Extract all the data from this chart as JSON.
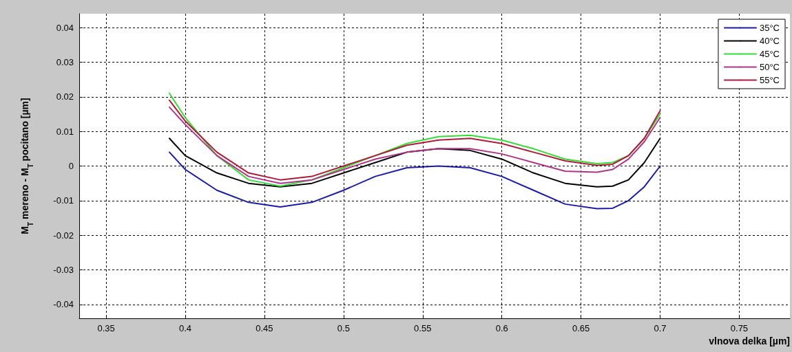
{
  "chart_data": {
    "type": "line",
    "xlabel": "vlnova delka [µm]",
    "ylabel": "M$_{T}$ mereno - M$_{T}$ pocitano [µm]",
    "x": [
      0.39,
      0.4,
      0.42,
      0.44,
      0.46,
      0.48,
      0.5,
      0.52,
      0.54,
      0.56,
      0.58,
      0.6,
      0.62,
      0.64,
      0.66,
      0.67,
      0.68,
      0.69,
      0.7
    ],
    "series": [
      {
        "name": "35°C",
        "color": "#1a1aa8",
        "values": [
          0.004,
          -0.001,
          -0.007,
          -0.0105,
          -0.0118,
          -0.0105,
          -0.007,
          -0.003,
          -0.0005,
          0.0,
          -0.0005,
          -0.003,
          -0.007,
          -0.011,
          -0.0123,
          -0.0122,
          -0.01,
          -0.006,
          0.0
        ]
      },
      {
        "name": "40°C",
        "color": "#000000",
        "values": [
          0.008,
          0.003,
          -0.002,
          -0.005,
          -0.006,
          -0.005,
          -0.002,
          0.001,
          0.004,
          0.005,
          0.0045,
          0.002,
          -0.002,
          -0.005,
          -0.006,
          -0.0058,
          -0.004,
          0.001,
          0.008
        ]
      },
      {
        "name": "45°C",
        "color": "#33dd33",
        "values": [
          0.021,
          0.014,
          0.003,
          -0.004,
          -0.0058,
          -0.004,
          -0.0005,
          0.003,
          0.0065,
          0.0085,
          0.0089,
          0.0075,
          0.005,
          0.002,
          0.0007,
          0.001,
          0.003,
          0.008,
          0.015
        ]
      },
      {
        "name": "50°C",
        "color": "#b0338a",
        "values": [
          0.017,
          0.012,
          0.003,
          -0.003,
          -0.005,
          -0.004,
          -0.001,
          0.002,
          0.004,
          0.005,
          0.005,
          0.0035,
          0.001,
          -0.0015,
          -0.0018,
          -0.001,
          0.002,
          0.007,
          0.014
        ]
      },
      {
        "name": "55°C",
        "color": "#b01a3a",
        "values": [
          0.019,
          0.013,
          0.004,
          -0.002,
          -0.004,
          -0.003,
          0.0,
          0.003,
          0.006,
          0.0075,
          0.008,
          0.0065,
          0.004,
          0.0015,
          0.0002,
          0.0005,
          0.003,
          0.008,
          0.016
        ]
      }
    ],
    "xlim": [
      0.333,
      0.782
    ],
    "xticks": [
      0.35,
      0.4,
      0.45,
      0.5,
      0.55,
      0.6,
      0.65,
      0.7,
      0.75
    ],
    "ylim": [
      -0.044,
      0.044
    ],
    "yticks": [
      -0.04,
      -0.03,
      -0.02,
      -0.01,
      0,
      0.01,
      0.02,
      0.03,
      0.04
    ],
    "grid": true,
    "legend": "top right",
    "marker": "none",
    "line_style": "solid"
  }
}
